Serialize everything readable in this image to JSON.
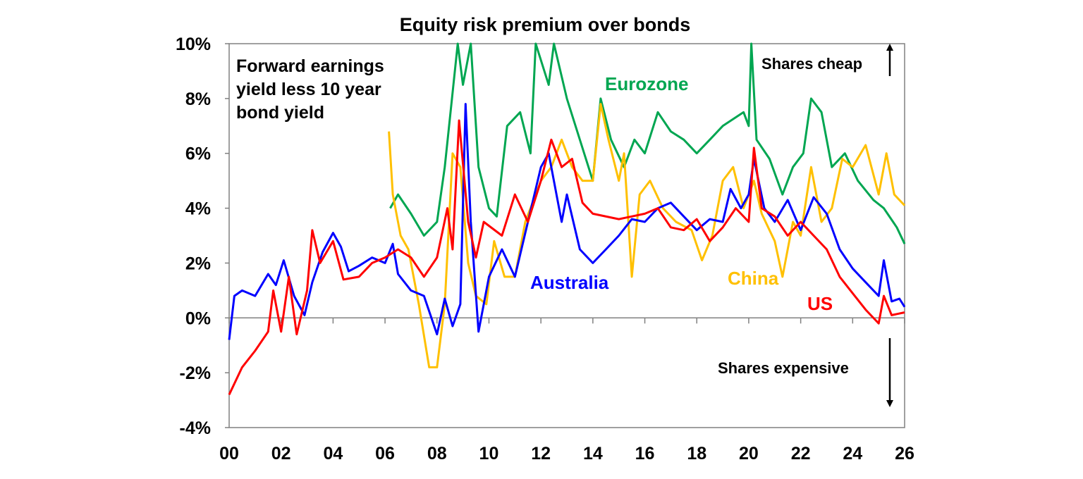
{
  "chart_data": {
    "type": "line",
    "title": "Equity risk premium over bonds",
    "annotation": "Forward earnings yield less 10 year bond yield",
    "annotation_lines": [
      "Forward earnings",
      "yield less 10 year",
      "bond yield"
    ],
    "note_top": "Shares cheap",
    "note_bottom": "Shares expensive",
    "xlabel": "",
    "ylabel": "",
    "xlim": [
      2000,
      2026
    ],
    "ylim": [
      -4,
      10
    ],
    "x_ticks": [
      2000,
      2002,
      2004,
      2006,
      2008,
      2010,
      2012,
      2014,
      2016,
      2018,
      2020,
      2022,
      2024,
      2026
    ],
    "x_tick_labels": [
      "00",
      "02",
      "04",
      "06",
      "08",
      "10",
      "12",
      "14",
      "16",
      "18",
      "20",
      "22",
      "24",
      "26"
    ],
    "y_ticks": [
      -4,
      -2,
      0,
      2,
      4,
      6,
      8,
      10
    ],
    "y_tick_labels": [
      "-4%",
      "-2%",
      "0%",
      "2%",
      "4%",
      "6%",
      "8%",
      "10%"
    ],
    "grid": false,
    "legend": "inline labels",
    "series": [
      {
        "name": "Australia",
        "color": "#0000ff",
        "x": [
          2000.0,
          2000.2,
          2000.5,
          2001.0,
          2001.5,
          2001.8,
          2002.1,
          2002.5,
          2002.9,
          2003.2,
          2003.6,
          2004.0,
          2004.3,
          2004.6,
          2005.0,
          2005.5,
          2006.0,
          2006.3,
          2006.5,
          2007.0,
          2007.5,
          2008.0,
          2008.3,
          2008.6,
          2008.9,
          2009.1,
          2009.3,
          2009.6,
          2010.0,
          2010.5,
          2011.0,
          2011.5,
          2012.0,
          2012.3,
          2012.8,
          2013.0,
          2013.5,
          2014.0,
          2014.5,
          2015.0,
          2015.5,
          2016.0,
          2016.5,
          2017.0,
          2017.5,
          2018.0,
          2018.5,
          2019.0,
          2019.3,
          2019.7,
          2020.0,
          2020.2,
          2020.6,
          2021.0,
          2021.5,
          2022.0,
          2022.5,
          2023.0,
          2023.5,
          2024.0,
          2024.5,
          2025.0,
          2025.2,
          2025.5,
          2025.8,
          2026.0
        ],
        "values": [
          -0.8,
          0.8,
          1.0,
          0.8,
          1.6,
          1.2,
          2.1,
          0.8,
          0.1,
          1.3,
          2.4,
          3.1,
          2.6,
          1.7,
          1.9,
          2.2,
          2.0,
          2.7,
          1.6,
          1.0,
          0.8,
          -0.6,
          0.7,
          -0.3,
          0.5,
          7.8,
          3.5,
          -0.5,
          1.5,
          2.5,
          1.5,
          3.5,
          5.5,
          6.0,
          3.5,
          4.5,
          2.5,
          2.0,
          2.5,
          3.0,
          3.6,
          3.5,
          4.0,
          4.2,
          3.7,
          3.2,
          3.6,
          3.5,
          4.7,
          4.0,
          4.5,
          5.8,
          4.0,
          3.5,
          4.3,
          3.2,
          4.4,
          3.8,
          2.5,
          1.8,
          1.3,
          0.8,
          2.1,
          0.6,
          0.7,
          0.4
        ]
      },
      {
        "name": "US",
        "color": "#ff0000",
        "x": [
          2000.0,
          2000.5,
          2001.0,
          2001.5,
          2001.7,
          2002.0,
          2002.3,
          2002.6,
          2003.0,
          2003.2,
          2003.5,
          2004.0,
          2004.4,
          2005.0,
          2005.5,
          2006.0,
          2006.5,
          2007.0,
          2007.5,
          2008.0,
          2008.4,
          2008.6,
          2008.85,
          2009.2,
          2009.5,
          2009.8,
          2010.5,
          2011.0,
          2011.5,
          2012.0,
          2012.4,
          2012.8,
          2013.2,
          2013.6,
          2014.0,
          2015.0,
          2016.0,
          2016.5,
          2017.0,
          2017.5,
          2018.0,
          2018.5,
          2019.0,
          2019.5,
          2020.0,
          2020.2,
          2020.5,
          2021.0,
          2021.5,
          2022.0,
          2022.5,
          2023.0,
          2023.5,
          2024.0,
          2024.5,
          2025.0,
          2025.2,
          2025.5,
          2026.0
        ],
        "values": [
          -2.8,
          -1.8,
          -1.2,
          -0.5,
          1.0,
          -0.5,
          1.5,
          -0.6,
          1.0,
          3.2,
          2.0,
          2.8,
          1.4,
          1.5,
          2.0,
          2.2,
          2.5,
          2.2,
          1.5,
          2.2,
          4.0,
          2.5,
          7.2,
          3.5,
          2.2,
          3.5,
          3.0,
          4.5,
          3.5,
          5.0,
          6.5,
          5.5,
          5.8,
          4.2,
          3.8,
          3.6,
          3.8,
          4.0,
          3.3,
          3.2,
          3.6,
          2.8,
          3.3,
          4.0,
          3.5,
          6.2,
          4.0,
          3.7,
          3.0,
          3.5,
          3.0,
          2.5,
          1.5,
          0.9,
          0.3,
          -0.2,
          0.8,
          0.1,
          0.2
        ]
      },
      {
        "name": "Eurozone",
        "color": "#00a651",
        "x": [
          2006.2,
          2006.5,
          2007.0,
          2007.5,
          2008.0,
          2008.3,
          2008.8,
          2009.0,
          2009.3,
          2009.6,
          2010.0,
          2010.3,
          2010.7,
          2011.2,
          2011.6,
          2011.8,
          2012.3,
          2012.5,
          2013.0,
          2013.5,
          2014.0,
          2014.3,
          2014.7,
          2015.2,
          2015.6,
          2016.0,
          2016.5,
          2017.0,
          2017.5,
          2018.0,
          2018.5,
          2019.0,
          2019.8,
          2020.0,
          2020.1,
          2020.3,
          2020.8,
          2021.3,
          2021.7,
          2022.1,
          2022.4,
          2022.8,
          2023.2,
          2023.7,
          2024.2,
          2024.8,
          2025.2,
          2025.7,
          2026.0
        ],
        "values": [
          4.0,
          4.5,
          3.8,
          3.0,
          3.5,
          5.5,
          10.0,
          8.5,
          10.0,
          5.5,
          4.0,
          3.7,
          7.0,
          7.5,
          6.0,
          10.0,
          8.5,
          10.0,
          8.0,
          6.5,
          5.0,
          8.0,
          6.5,
          5.5,
          6.5,
          6.0,
          7.5,
          6.8,
          6.5,
          6.0,
          6.5,
          7.0,
          7.5,
          7.0,
          10.0,
          6.5,
          5.8,
          4.5,
          5.5,
          6.0,
          8.0,
          7.5,
          5.5,
          6.0,
          5.0,
          4.3,
          4.0,
          3.3,
          2.7
        ]
      },
      {
        "name": "China",
        "color": "#ffc000",
        "x": [
          2006.15,
          2006.3,
          2006.6,
          2006.9,
          2007.3,
          2007.7,
          2008.0,
          2008.3,
          2008.6,
          2008.9,
          2009.2,
          2009.5,
          2009.9,
          2010.2,
          2010.6,
          2011.0,
          2011.4,
          2012.0,
          2012.4,
          2012.8,
          2013.2,
          2013.6,
          2014.0,
          2014.3,
          2014.6,
          2015.0,
          2015.2,
          2015.5,
          2015.8,
          2016.2,
          2016.7,
          2017.2,
          2017.8,
          2018.2,
          2018.6,
          2019.0,
          2019.4,
          2019.8,
          2020.2,
          2020.5,
          2021.0,
          2021.3,
          2021.7,
          2022.0,
          2022.4,
          2022.8,
          2023.2,
          2023.6,
          2024.0,
          2024.5,
          2025.0,
          2025.3,
          2025.6,
          2026.0
        ],
        "values": [
          6.8,
          4.5,
          3.0,
          2.5,
          0.5,
          -1.8,
          -1.8,
          0.5,
          6.0,
          5.5,
          2.0,
          0.8,
          0.5,
          2.8,
          1.5,
          1.5,
          3.5,
          5.0,
          5.5,
          6.5,
          5.5,
          5.0,
          5.0,
          7.8,
          6.5,
          5.0,
          6.0,
          1.5,
          4.5,
          5.0,
          4.0,
          3.5,
          3.2,
          2.1,
          3.0,
          5.0,
          5.5,
          4.0,
          5.0,
          3.8,
          2.8,
          1.5,
          3.5,
          3.0,
          5.5,
          3.5,
          4.0,
          5.8,
          5.5,
          6.3,
          4.5,
          6.0,
          4.5,
          4.1
        ]
      }
    ]
  }
}
